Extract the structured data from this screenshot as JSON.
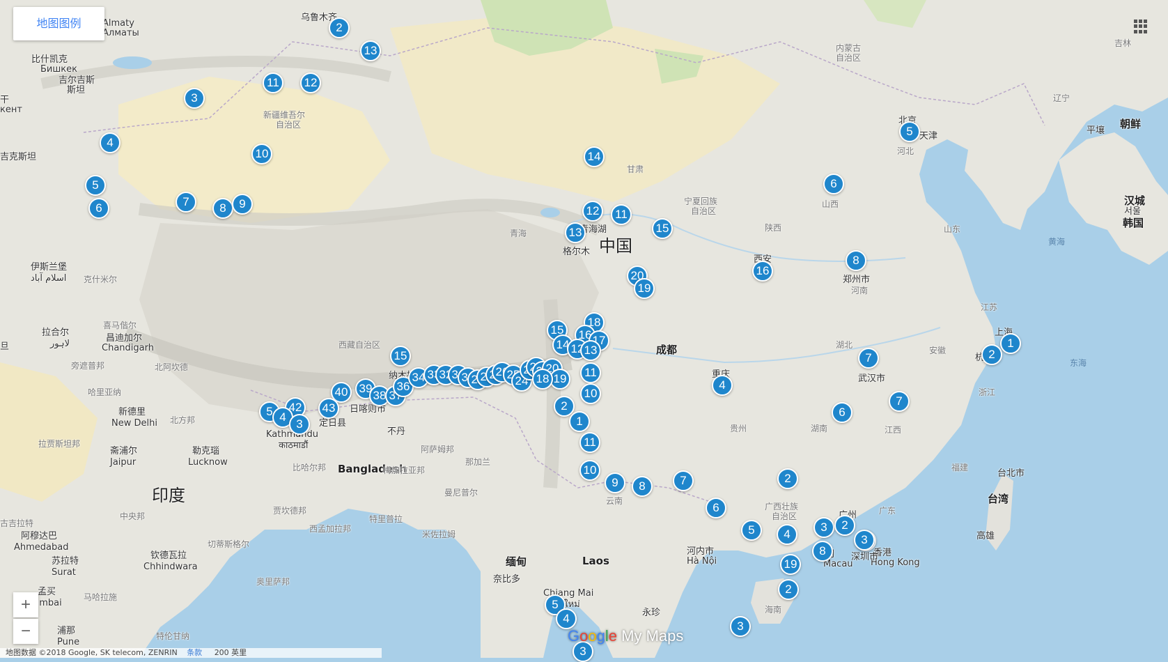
{
  "legend_button": "地图图例",
  "zoom_in": "+",
  "zoom_out": "−",
  "brand": {
    "g1": "G",
    "g2": "o",
    "g3": "o",
    "g4": "g",
    "g5": "l",
    "g6": "e",
    "rest": " My Maps"
  },
  "footer": {
    "data": "地图数据 ©2018 Google, SK telecom, ZENRIN",
    "terms": "条款",
    "scale": "200 英里"
  },
  "labels": {
    "china": "中国",
    "india": "印度",
    "bangladesh": "Bangladesh",
    "laos": "Laos",
    "almaty": "Almaty",
    "almaty_ru": "Алматы",
    "bishkek": "比什凯克",
    "bishkek_ru": "Бишкек",
    "kyrgyz": "吉尔吉斯",
    "kyrgyz2": "斯坦",
    "tashkent": "кент",
    "urumqi": "乌鲁木齐",
    "xinjiang": "新疆维吾尔",
    "xinjiang2": "自治区",
    "innermongolia": "内蒙古",
    "innermongolia2": "自治区",
    "jilin": "吉林",
    "liaoning": "辽宁",
    "pyongyang": "平壤",
    "korea": "朝鲜",
    "beijing": "北京",
    "tianjin": "天津",
    "hebei": "河北",
    "shanxi": "山西",
    "shandong": "山东",
    "seoul": "汉城",
    "seoul2": "서울",
    "southkorea": "韩国",
    "yellowsea": "黄海",
    "gansu": "甘肃",
    "ningxia": "宁夏回族",
    "ningxia2": "自治区",
    "qinghai": "青海",
    "qinghaihu": "青海湖",
    "golmud": "格尔木",
    "shaanxi": "陕西",
    "xian": "西安",
    "zhengzhou": "郑州市",
    "henan": "河南",
    "jiangsu": "江苏",
    "shanghai": "上海",
    "anhui": "安徽",
    "hubei": "湖北",
    "wuhan": "武汉市",
    "zhejiang": "浙江",
    "hangzhou": "杭",
    "eastsea": "东海",
    "chengdu": "成都",
    "chongqing": "重庆",
    "guizhou": "贵州",
    "hunan": "湖南",
    "jiangxi": "江西",
    "fujian": "福建",
    "taipei": "台北市",
    "taiwan": "台湾",
    "kaohsiung": "高雄",
    "guangxi": "广西壮族",
    "guangxi2": "自治区",
    "guangzhou": "广州",
    "guangdong": "广东",
    "hongkong": "香港",
    "hongkong_en": "Hong Kong",
    "shenzhen": "深圳市",
    "macau": "Macau",
    "macau_cn": "澳门",
    "hanoi": "河内市",
    "hanoi_vn": "Hà Nội",
    "hainan": "海南",
    "yunnan": "云南",
    "tibet": "西藏自治区",
    "nagqu": "纳木措",
    "shigatse": "日喀则市",
    "dingri": "定日县",
    "bhutan": "不丹",
    "kathmandu": "Kathmandu",
    "kathmandu_np": "काठमाडौं",
    "islamabad": "伊斯兰堡",
    "islamabad_ur": "اسلام آباد",
    "lahore": "拉合尔",
    "lahore_ur": "لاہور",
    "chandigarh_cn": "昌迪加尔",
    "chandigarh": "Chandigarh",
    "punjab": "旁遮普邦",
    "haryana": "哈里亚纳",
    "himachal": "喜马偕尔",
    "uttarakhand": "北阿坎德",
    "newdelhi_cn": "新德里",
    "newdelhi": "New Delhi",
    "uttarpradesh": "北方邦",
    "rajasthan": "拉贾斯坦邦",
    "jaipur_cn": "斋浦尔",
    "jaipur": "Jaipur",
    "lucknow_cn": "勒克瑙",
    "lucknow": "Lucknow",
    "bihar": "比哈尔邦",
    "assam": "阿萨姆邦",
    "meghalaya": "梅加拉亚邦",
    "nagaland": "那加兰",
    "manipur": "曼尼普尔",
    "jharkhand": "贾坎德邦",
    "westbengal": "西孟加拉邦",
    "madhya": "中央邦",
    "gujarat": "古吉拉特",
    "ahmedabad_cn": "阿穆达巴",
    "ahmedabad": "Ahmedabad",
    "surat_cn": "苏拉特",
    "surat": "Surat",
    "chhindwara_cn": "钦德瓦拉",
    "chhindwara": "Chhindwara",
    "chhattisgarh": "切蒂斯格尔",
    "maharashtra": "马哈拉施",
    "odisha": "奥里萨邦",
    "mumbai_cn": "孟买",
    "mumbai": "umbai",
    "pune_cn": "浦那",
    "pune": "Pune",
    "telangana": "特伦甘纳",
    "tripura": "特里普拉",
    "mizoram": "米佐拉姆",
    "myanmar": "缅甸",
    "naypyidaw": "奈比多",
    "chiangmai": "Chiang Mai",
    "chiangmai_th": "เชียงใหม่",
    "vientiane": "永珍",
    "kashmir": "克什米尔",
    "tajik": "吉克斯坦",
    "dan": "旦",
    "gan": "干"
  },
  "markers": [
    {
      "n": "2"
    },
    {
      "n": "13"
    },
    {
      "n": "11"
    },
    {
      "n": "12"
    },
    {
      "n": "3"
    },
    {
      "n": "4"
    },
    {
      "n": "10"
    },
    {
      "n": "5"
    },
    {
      "n": "6"
    },
    {
      "n": "7"
    },
    {
      "n": "8"
    },
    {
      "n": "9"
    },
    {
      "n": "14"
    },
    {
      "n": "12"
    },
    {
      "n": "11"
    },
    {
      "n": "13"
    },
    {
      "n": "15"
    },
    {
      "n": "20"
    },
    {
      "n": "19"
    },
    {
      "n": "16"
    },
    {
      "n": "6"
    },
    {
      "n": "5"
    },
    {
      "n": "8"
    },
    {
      "n": "1"
    },
    {
      "n": "2"
    },
    {
      "n": "7"
    },
    {
      "n": "7"
    },
    {
      "n": "6"
    },
    {
      "n": "4"
    },
    {
      "n": "15"
    },
    {
      "n": "18"
    },
    {
      "n": "16"
    },
    {
      "n": "17"
    },
    {
      "n": "14"
    },
    {
      "n": "12"
    },
    {
      "n": "13"
    },
    {
      "n": "11"
    },
    {
      "n": "10"
    },
    {
      "n": "2"
    },
    {
      "n": "1"
    },
    {
      "n": "11"
    },
    {
      "n": "10"
    },
    {
      "n": "9"
    },
    {
      "n": "8"
    },
    {
      "n": "7"
    },
    {
      "n": "6"
    },
    {
      "n": "5"
    },
    {
      "n": "4"
    },
    {
      "n": "3"
    },
    {
      "n": "3"
    },
    {
      "n": "2"
    },
    {
      "n": "2"
    },
    {
      "n": "3"
    },
    {
      "n": "8"
    },
    {
      "n": "19"
    },
    {
      "n": "2"
    },
    {
      "n": "3"
    },
    {
      "n": "5"
    },
    {
      "n": "4"
    },
    {
      "n": "3"
    },
    {
      "n": "15"
    },
    {
      "n": "39"
    },
    {
      "n": "40"
    },
    {
      "n": "43"
    },
    {
      "n": "42"
    },
    {
      "n": "5"
    },
    {
      "n": "4"
    },
    {
      "n": "3"
    },
    {
      "n": "38"
    },
    {
      "n": "37"
    },
    {
      "n": "36"
    },
    {
      "n": "34"
    },
    {
      "n": "33"
    },
    {
      "n": "32"
    },
    {
      "n": "31"
    },
    {
      "n": "30"
    },
    {
      "n": "29"
    },
    {
      "n": "28"
    },
    {
      "n": "27"
    },
    {
      "n": "26"
    },
    {
      "n": "25"
    },
    {
      "n": "24"
    },
    {
      "n": "23"
    },
    {
      "n": "22"
    },
    {
      "n": "21"
    },
    {
      "n": "20"
    },
    {
      "n": "19"
    },
    {
      "n": "18"
    },
    {
      "n": "4"
    },
    {
      "n": "3"
    }
  ]
}
